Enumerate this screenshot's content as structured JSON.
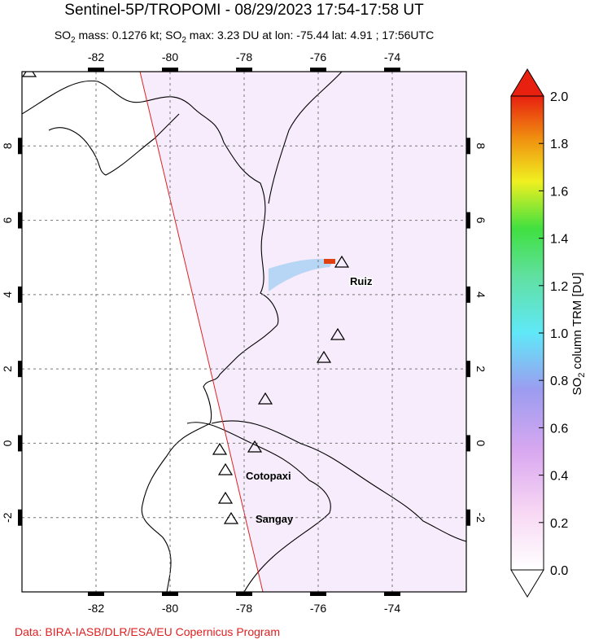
{
  "header": {
    "title": "Sentinel-5P/TROPOMI - 08/29/2023 17:54-17:58 UT",
    "subtitle": [
      "SO",
      "2",
      " mass: 0.1276 kt; SO",
      "2",
      " max: 3.23 DU at lon: -75.44 lat: 4.91 ; 17:56UTC"
    ]
  },
  "map": {
    "lonlim": [
      -84,
      -72
    ],
    "latlim": [
      -4,
      10
    ],
    "lon_ticks": [
      -82,
      -80,
      -78,
      -76,
      -74
    ],
    "lat_ticks": [
      -2,
      0,
      2,
      4,
      6,
      8
    ],
    "volcano_labels": [
      "Ruiz",
      "Cotopaxi",
      "Sangay"
    ]
  },
  "colorbar": {
    "range": [
      0,
      2
    ],
    "ticks": [
      {
        "value": 0,
        "label": "0.0"
      },
      {
        "value": 0.2,
        "label": "0.2"
      },
      {
        "value": 0.4,
        "label": "0.4"
      },
      {
        "value": 0.6,
        "label": "0.6"
      },
      {
        "value": 0.8,
        "label": "0.8"
      },
      {
        "value": 1,
        "label": "1.0"
      },
      {
        "value": 1.2,
        "label": "1.2"
      },
      {
        "value": 1.4,
        "label": "1.4"
      },
      {
        "value": 1.6,
        "label": "1.6"
      },
      {
        "value": 1.8,
        "label": "1.8"
      },
      {
        "value": 2,
        "label": "2.0"
      }
    ],
    "label": [
      "SO",
      "2",
      " column TRM [DU]"
    ]
  },
  "footer": {
    "credit": "Data: BIRA-IASB/DLR/ESA/EU Copernicus Program"
  }
}
